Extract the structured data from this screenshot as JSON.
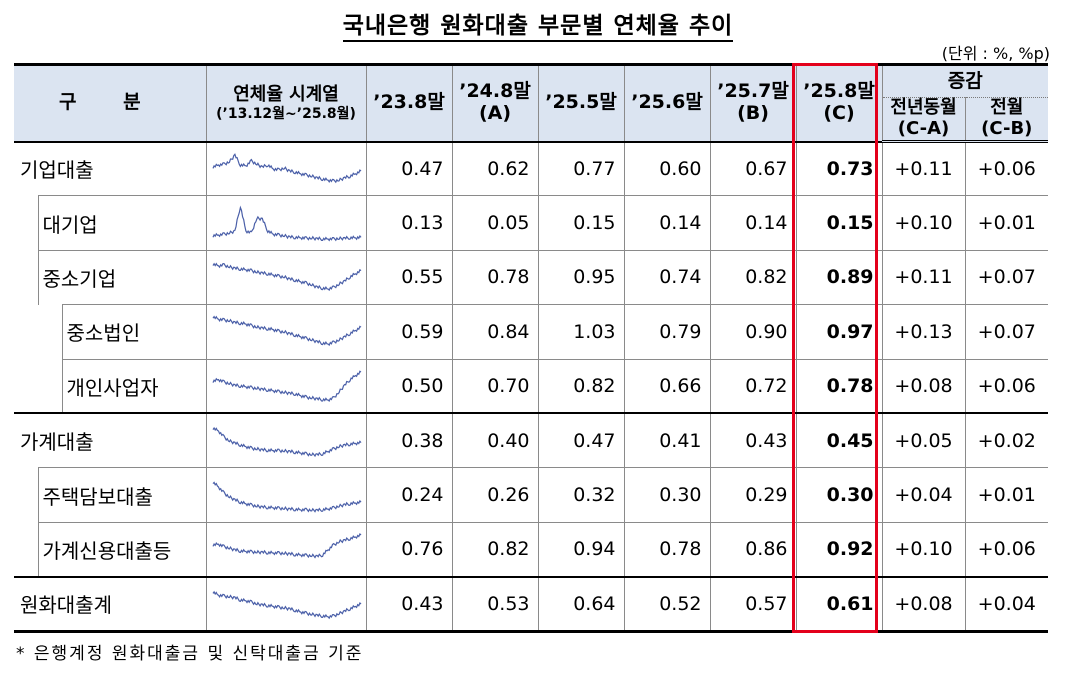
{
  "title": "국내은행 원화대출 부문별 연체율 추이",
  "unit": "(단위 : %, %p)",
  "header": {
    "category": "구 분",
    "series_title": "연체율 시계열",
    "series_range": "(’13.12월~’25.8월)",
    "col1": "’23.8말",
    "col2": "’24.8말",
    "col2_sub": "(A)",
    "col3": "’25.5말",
    "col4": "’25.6말",
    "col5": "’25.7말",
    "col5_sub": "(B)",
    "col6": "’25.8말",
    "col6_sub": "(C)",
    "change": "증감",
    "yoy": "전년동월",
    "yoy_sub": "(C-A)",
    "mom": "전월",
    "mom_sub": "(C-B)"
  },
  "rows": [
    {
      "label": "기업대출",
      "values": [
        "0.47",
        "0.62",
        "0.77",
        "0.60",
        "0.67",
        "0.73"
      ],
      "yoy": "+0.11",
      "mom": "+0.06",
      "spark": [
        0.55,
        0.6,
        0.62,
        0.68,
        0.85,
        0.6,
        0.58,
        0.7,
        0.62,
        0.55,
        0.6,
        0.5,
        0.48,
        0.52,
        0.45,
        0.42,
        0.38,
        0.35,
        0.32,
        0.28,
        0.25,
        0.22,
        0.2,
        0.22,
        0.28,
        0.32,
        0.38,
        0.45
      ]
    },
    {
      "label": "대기업",
      "values": [
        "0.13",
        "0.05",
        "0.15",
        "0.14",
        "0.14",
        "0.15"
      ],
      "yoy": "+0.10",
      "mom": "+0.01",
      "spark": [
        0.18,
        0.2,
        0.22,
        0.25,
        0.3,
        0.92,
        0.3,
        0.25,
        0.62,
        0.6,
        0.3,
        0.22,
        0.2,
        0.18,
        0.15,
        0.14,
        0.13,
        0.12,
        0.12,
        0.11,
        0.1,
        0.1,
        0.1,
        0.11,
        0.12,
        0.13,
        0.13,
        0.14
      ]
    },
    {
      "label": "중소기업",
      "values": [
        "0.55",
        "0.78",
        "0.95",
        "0.74",
        "0.82",
        "0.89"
      ],
      "yoy": "+0.11",
      "mom": "+0.07",
      "spark": [
        0.82,
        0.78,
        0.8,
        0.75,
        0.72,
        0.7,
        0.68,
        0.66,
        0.62,
        0.6,
        0.58,
        0.55,
        0.52,
        0.5,
        0.45,
        0.42,
        0.38,
        0.35,
        0.3,
        0.25,
        0.22,
        0.2,
        0.24,
        0.32,
        0.4,
        0.5,
        0.58,
        0.66
      ]
    },
    {
      "label": "중소법인",
      "values": [
        "0.59",
        "0.84",
        "1.03",
        "0.79",
        "0.90",
        "0.97"
      ],
      "yoy": "+0.13",
      "mom": "+0.07",
      "spark": [
        0.88,
        0.82,
        0.8,
        0.78,
        0.74,
        0.72,
        0.7,
        0.66,
        0.62,
        0.6,
        0.58,
        0.56,
        0.52,
        0.5,
        0.46,
        0.42,
        0.38,
        0.34,
        0.3,
        0.26,
        0.22,
        0.2,
        0.24,
        0.3,
        0.38,
        0.46,
        0.54,
        0.62
      ]
    },
    {
      "label": "개인사업자",
      "values": [
        "0.50",
        "0.70",
        "0.82",
        "0.66",
        "0.72",
        "0.78"
      ],
      "yoy": "+0.08",
      "mom": "+0.06",
      "spark": [
        0.62,
        0.66,
        0.6,
        0.56,
        0.52,
        0.5,
        0.48,
        0.46,
        0.44,
        0.42,
        0.4,
        0.38,
        0.36,
        0.34,
        0.32,
        0.3,
        0.26,
        0.22,
        0.2,
        0.18,
        0.16,
        0.15,
        0.2,
        0.35,
        0.52,
        0.66,
        0.76,
        0.85
      ]
    },
    {
      "label": "가계대출",
      "values": [
        "0.38",
        "0.40",
        "0.47",
        "0.41",
        "0.43",
        "0.45"
      ],
      "yoy": "+0.05",
      "mom": "+0.02",
      "spark": [
        0.82,
        0.75,
        0.6,
        0.5,
        0.45,
        0.4,
        0.36,
        0.32,
        0.3,
        0.28,
        0.27,
        0.26,
        0.26,
        0.25,
        0.24,
        0.22,
        0.2,
        0.18,
        0.16,
        0.16,
        0.18,
        0.24,
        0.3,
        0.36,
        0.4,
        0.42,
        0.44,
        0.46
      ]
    },
    {
      "label": "주택담보대출",
      "values": [
        "0.24",
        "0.26",
        "0.32",
        "0.30",
        "0.29",
        "0.30"
      ],
      "yoy": "+0.04",
      "mom": "+0.01",
      "spark": [
        0.82,
        0.7,
        0.55,
        0.45,
        0.38,
        0.32,
        0.28,
        0.25,
        0.22,
        0.2,
        0.19,
        0.18,
        0.17,
        0.16,
        0.15,
        0.14,
        0.13,
        0.13,
        0.12,
        0.12,
        0.13,
        0.15,
        0.18,
        0.22,
        0.26,
        0.28,
        0.3,
        0.32
      ]
    },
    {
      "label": "가계신용대출등",
      "values": [
        "0.76",
        "0.82",
        "0.94",
        "0.78",
        "0.86",
        "0.92"
      ],
      "yoy": "+0.10",
      "mom": "+0.06",
      "spark": [
        0.6,
        0.62,
        0.56,
        0.52,
        0.48,
        0.45,
        0.44,
        0.43,
        0.42,
        0.42,
        0.41,
        0.4,
        0.4,
        0.39,
        0.38,
        0.36,
        0.35,
        0.34,
        0.33,
        0.32,
        0.35,
        0.48,
        0.6,
        0.68,
        0.72,
        0.76,
        0.8,
        0.85
      ]
    },
    {
      "label": "원화대출계",
      "values": [
        "0.43",
        "0.53",
        "0.64",
        "0.52",
        "0.57",
        "0.61"
      ],
      "yoy": "+0.08",
      "mom": "+0.04",
      "spark": [
        0.8,
        0.72,
        0.7,
        0.68,
        0.66,
        0.6,
        0.58,
        0.55,
        0.5,
        0.48,
        0.46,
        0.44,
        0.42,
        0.4,
        0.38,
        0.34,
        0.3,
        0.27,
        0.24,
        0.22,
        0.2,
        0.18,
        0.2,
        0.26,
        0.32,
        0.38,
        0.44,
        0.5
      ]
    }
  ],
  "footnote": "* 은행계정 원화대출금 및 신탁대출금 기준",
  "colors": {
    "header_bg": "#dbe4f1",
    "highlight": "#e3001b",
    "spark": "#4a5fa8"
  }
}
